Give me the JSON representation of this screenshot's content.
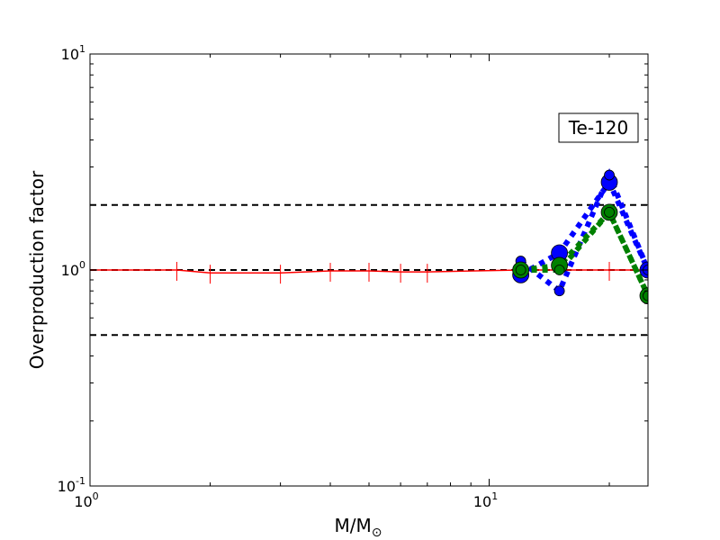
{
  "chart_data": {
    "type": "line",
    "title": "",
    "xlabel": "M/M",
    "xlabel_subscript": "⊙",
    "ylabel": "Overproduction factor",
    "xscale": "log",
    "yscale": "log",
    "xlim": [
      1,
      25
    ],
    "ylim": [
      0.1,
      10
    ],
    "x_tick_labels": [
      {
        "value": 1,
        "base": "10",
        "exp": "0"
      },
      {
        "value": 10,
        "base": "10",
        "exp": "1"
      }
    ],
    "y_tick_labels": [
      {
        "value": 0.1,
        "base": "10",
        "exp": "-1"
      },
      {
        "value": 1,
        "base": "10",
        "exp": "0"
      },
      {
        "value": 10,
        "base": "10",
        "exp": "1"
      }
    ],
    "annotation": {
      "text": "Te-120",
      "placement": "top-right"
    },
    "reference_lines": [
      {
        "y": 2,
        "style": "dashed",
        "color": "#000000"
      },
      {
        "y": 1,
        "style": "dashed",
        "color": "#000000"
      },
      {
        "y": 0.5,
        "style": "dashed",
        "color": "#000000"
      }
    ],
    "series": [
      {
        "color": "#ff0000",
        "style": "solid",
        "x": [
          1,
          1.65,
          2,
          3,
          4,
          5,
          6,
          7,
          12,
          15,
          20,
          25
        ],
        "y": [
          1.0,
          1.0,
          0.97,
          0.97,
          0.99,
          0.99,
          0.98,
          0.98,
          1.0,
          1.0,
          1.0,
          1.0
        ],
        "errorbar_x": [
          1.65,
          2,
          3,
          4,
          5,
          6,
          7,
          20
        ]
      },
      {
        "color": "#0000ff",
        "style": "dotted",
        "markers": "circle",
        "x": [
          12,
          15,
          20,
          25
        ],
        "y": [
          0.95,
          1.2,
          2.55,
          1.0
        ]
      },
      {
        "color": "#0000ff",
        "style": "dotted",
        "markers": "circle-small",
        "x": [
          12,
          15,
          20,
          25
        ],
        "y": [
          1.1,
          0.8,
          2.75,
          1.0
        ]
      },
      {
        "color": "#008000",
        "style": "dotted",
        "markers": "circle",
        "x": [
          12,
          15,
          20,
          25
        ],
        "y": [
          1.0,
          1.05,
          1.85,
          0.76
        ]
      },
      {
        "color": "#008000",
        "style": "dotted",
        "markers": "circle-small",
        "x": [
          12,
          15,
          20,
          25
        ],
        "y": [
          1.0,
          1.0,
          1.85,
          0.76
        ]
      }
    ],
    "grid": false,
    "legend": "none"
  }
}
